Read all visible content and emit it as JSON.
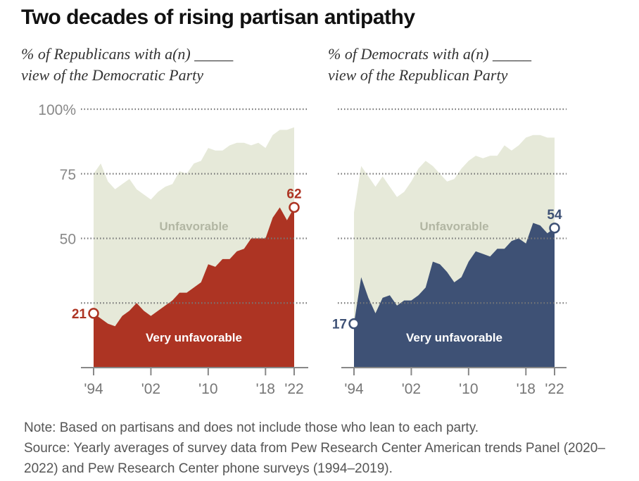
{
  "chart_data": [
    {
      "type": "area",
      "title": "Two decades of rising partisan antipathy",
      "subtitle": "% of Republicans with a(n) _____ view of the Democratic Party",
      "x": [
        1994,
        1995,
        1996,
        1997,
        1998,
        1999,
        2000,
        2001,
        2002,
        2003,
        2004,
        2005,
        2006,
        2007,
        2008,
        2009,
        2010,
        2011,
        2012,
        2013,
        2014,
        2015,
        2016,
        2017,
        2018,
        2019,
        2020,
        2021,
        2022
      ],
      "xticks": [
        "'94",
        "'02",
        "'10",
        "'18",
        "'22"
      ],
      "xtick_values": [
        1994,
        2002,
        2010,
        2018,
        2022
      ],
      "yticks": [
        "100%",
        "75",
        "50",
        ""
      ],
      "ytick_values": [
        100,
        75,
        50,
        25
      ],
      "ylim": [
        0,
        100
      ],
      "series": [
        {
          "name": "Unfavorable",
          "color": "#e6e9d9",
          "values": [
            75,
            79,
            72,
            69,
            71,
            73,
            69,
            67,
            65,
            68,
            70,
            71,
            76,
            75,
            79,
            80,
            85,
            84,
            84,
            86,
            87,
            87,
            86,
            87,
            85,
            90,
            92,
            92,
            93
          ]
        },
        {
          "name": "Very unfavorable",
          "color": "#ad3423",
          "values": [
            21,
            19,
            17,
            16,
            20,
            22,
            25,
            22,
            20,
            22,
            24,
            26,
            29,
            29,
            31,
            33,
            40,
            39,
            42,
            42,
            45,
            46,
            50,
            50,
            50,
            58,
            62,
            57,
            62
          ]
        }
      ],
      "start_label": "21",
      "end_label": "62",
      "area_labels": {
        "outer": "Unfavorable",
        "inner": "Very unfavorable"
      }
    },
    {
      "type": "area",
      "subtitle": "% of Democrats with a(n) _____ view of the Republican Party",
      "x": [
        1994,
        1995,
        1996,
        1997,
        1998,
        1999,
        2000,
        2001,
        2002,
        2003,
        2004,
        2005,
        2006,
        2007,
        2008,
        2009,
        2010,
        2011,
        2012,
        2013,
        2014,
        2015,
        2016,
        2017,
        2018,
        2019,
        2020,
        2021,
        2022
      ],
      "xticks": [
        "'94",
        "'02",
        "'10",
        "'18",
        "'22"
      ],
      "xtick_values": [
        1994,
        2002,
        2010,
        2018,
        2022
      ],
      "ytick_values": [
        100,
        75,
        50,
        25
      ],
      "ylim": [
        0,
        100
      ],
      "series": [
        {
          "name": "Unfavorable",
          "color": "#e6e9d9",
          "values": [
            60,
            78,
            74,
            70,
            74,
            70,
            66,
            68,
            72,
            77,
            80,
            78,
            75,
            72,
            73,
            77,
            80,
            82,
            81,
            82,
            82,
            86,
            84,
            86,
            89,
            90,
            90,
            89,
            89
          ]
        },
        {
          "name": "Very unfavorable",
          "color": "#3e5175",
          "values": [
            17,
            35,
            27,
            21,
            27,
            28,
            24,
            26,
            26,
            28,
            31,
            41,
            40,
            37,
            33,
            35,
            41,
            45,
            44,
            43,
            46,
            46,
            49,
            50,
            48,
            56,
            55,
            52,
            54
          ]
        }
      ],
      "start_label": "17",
      "end_label": "54",
      "area_labels": {
        "outer": "Unfavorable",
        "inner": "Very unfavorable"
      }
    }
  ],
  "header": {
    "title": "Two decades of rising partisan antipathy",
    "left_subtitle": "% of Republicans with a(n) _____\nview of the Democratic Party",
    "right_subtitle": "% of Democrats with a(n) _____\nview of the Republican Party"
  },
  "notes": {
    "note": "Note: Based on partisans and does not include those who lean to each party.",
    "source": "Source: Yearly averages of survey data from Pew Research Center American trends Panel (2020–2022) and Pew Research Center phone surveys (1994–2019)."
  }
}
